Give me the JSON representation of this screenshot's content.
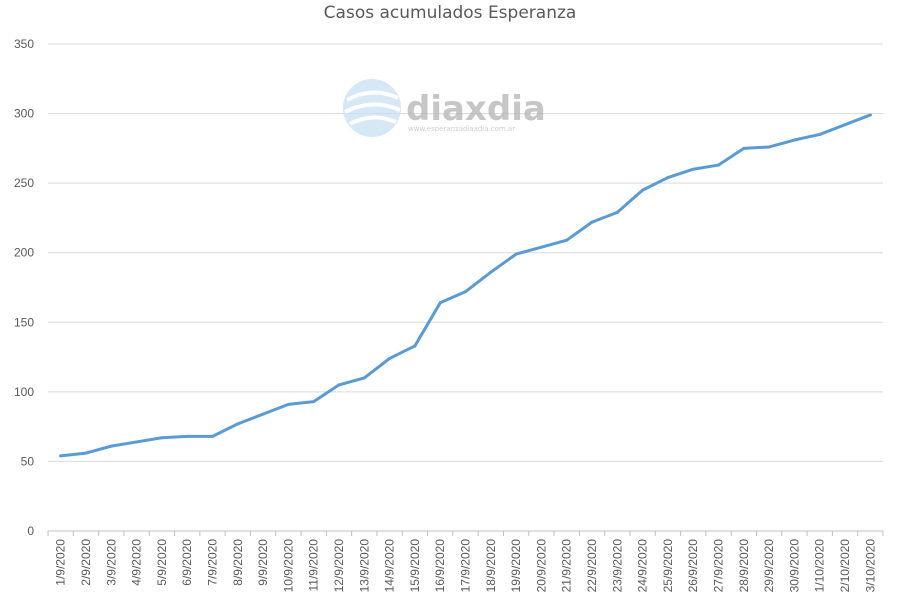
{
  "chart_data": {
    "type": "line",
    "title": "Casos acumulados Esperanza",
    "xlabel": "",
    "ylabel": "",
    "ylim": [
      0,
      350
    ],
    "yticks": [
      "0",
      "50",
      "100",
      "150",
      "200",
      "250",
      "300",
      "350"
    ],
    "grid": true,
    "legend": "none",
    "categories": [
      "1/9/2020",
      "2/9/2020",
      "3/9/2020",
      "4/9/2020",
      "5/9/2020",
      "6/9/2020",
      "7/9/2020",
      "8/9/2020",
      "9/9/2020",
      "10/9/2020",
      "11/9/2020",
      "12/9/2020",
      "13/9/2020",
      "14/9/2020",
      "15/9/2020",
      "16/9/2020",
      "17/9/2020",
      "18/9/2020",
      "19/9/2020",
      "20/9/2020",
      "21/9/2020",
      "22/9/2020",
      "23/9/2020",
      "24/9/2020",
      "25/9/2020",
      "26/9/2020",
      "27/9/2020",
      "28/9/2020",
      "29/9/2020",
      "30/9/2020",
      "1/10/2020",
      "2/10/2020",
      "3/10/2020"
    ],
    "series": [
      {
        "values": [
          54,
          56,
          61,
          64,
          67,
          68,
          68,
          77,
          84,
          91,
          93,
          105,
          110,
          124,
          133,
          164,
          172,
          186,
          199,
          204,
          209,
          222,
          229,
          245,
          254,
          260,
          263,
          275,
          276,
          281,
          285,
          292,
          299
        ]
      }
    ],
    "colors": {
      "line": "#5b9bd5",
      "grid": "#d9d9d9",
      "text": "#595959"
    }
  },
  "watermark": {
    "brand": "diaxdia",
    "url": "www.esperanzadiaxdia.com.ar",
    "icon": "e-globe-logo-icon"
  }
}
